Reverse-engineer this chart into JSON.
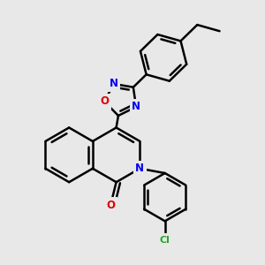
{
  "bg_color": "#e8e8e8",
  "bond_color": "#000000",
  "bond_width": 1.8,
  "atom_colors": {
    "N": "#0000ee",
    "O": "#dd0000",
    "Cl": "#22aa22",
    "C": "#000000"
  },
  "font_size": 8.5,
  "fig_width": 3.0,
  "fig_height": 3.0,
  "scale": 1.0
}
